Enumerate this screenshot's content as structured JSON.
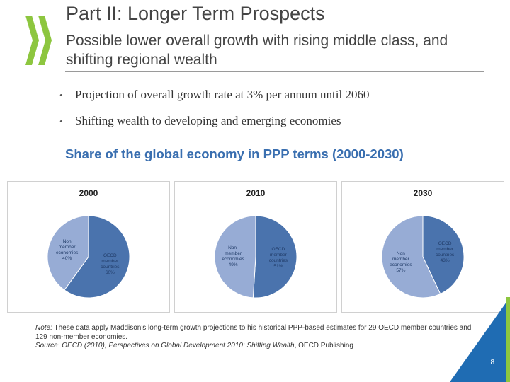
{
  "slide": {
    "title": "Part II: Longer Term Prospects",
    "subtitle": "Possible lower overall growth with rising middle class, and shifting regional wealth",
    "page_number": "8",
    "colors": {
      "accent_green": "#8dc63f",
      "heading_blue": "#3a6fb0",
      "corner_blue": "#1f6cb3"
    },
    "logo_icon": "oecd-double-chevron-logo"
  },
  "bullets": [
    "Projection of overall growth rate at 3% per annum  until 2060",
    "Shifting wealth to developing and emerging economies"
  ],
  "chart_heading": "Share of the global economy in PPP terms (2000-2030)",
  "chart_data": [
    {
      "type": "pie",
      "title": "2000",
      "slices": [
        {
          "label_lines": [
            "OECD",
            "member",
            "countries",
            "60%"
          ],
          "value": 60,
          "color": "#4a73ad"
        },
        {
          "label_lines": [
            "Non",
            "member",
            "economies",
            "40%"
          ],
          "value": 40,
          "color": "#97acd5"
        }
      ]
    },
    {
      "type": "pie",
      "title": "2010",
      "slices": [
        {
          "label_lines": [
            "OECD",
            "member",
            "countries",
            "51%"
          ],
          "value": 51,
          "color": "#4a73ad"
        },
        {
          "label_lines": [
            "Non-",
            "member",
            "economies",
            "49%"
          ],
          "value": 49,
          "color": "#97acd5"
        }
      ]
    },
    {
      "type": "pie",
      "title": "2030",
      "slices": [
        {
          "label_lines": [
            "OECD",
            "member",
            "countries",
            "43%"
          ],
          "value": 43,
          "color": "#4a73ad"
        },
        {
          "label_lines": [
            "Non",
            "member",
            "economies",
            "57%"
          ],
          "value": 57,
          "color": "#97acd5"
        }
      ]
    }
  ],
  "note": {
    "note_prefix": "Note:",
    "note_text": " These data apply Maddison's long-term growth projections to his historical PPP-based estimates for 29 OECD member countries and 129 non-member economies.",
    "source_prefix": "Source: OECD (2010), ",
    "source_italic": "Perspectives on Global Development 2010: Shifting Wealth",
    "source_suffix": ", OECD Publishing"
  }
}
